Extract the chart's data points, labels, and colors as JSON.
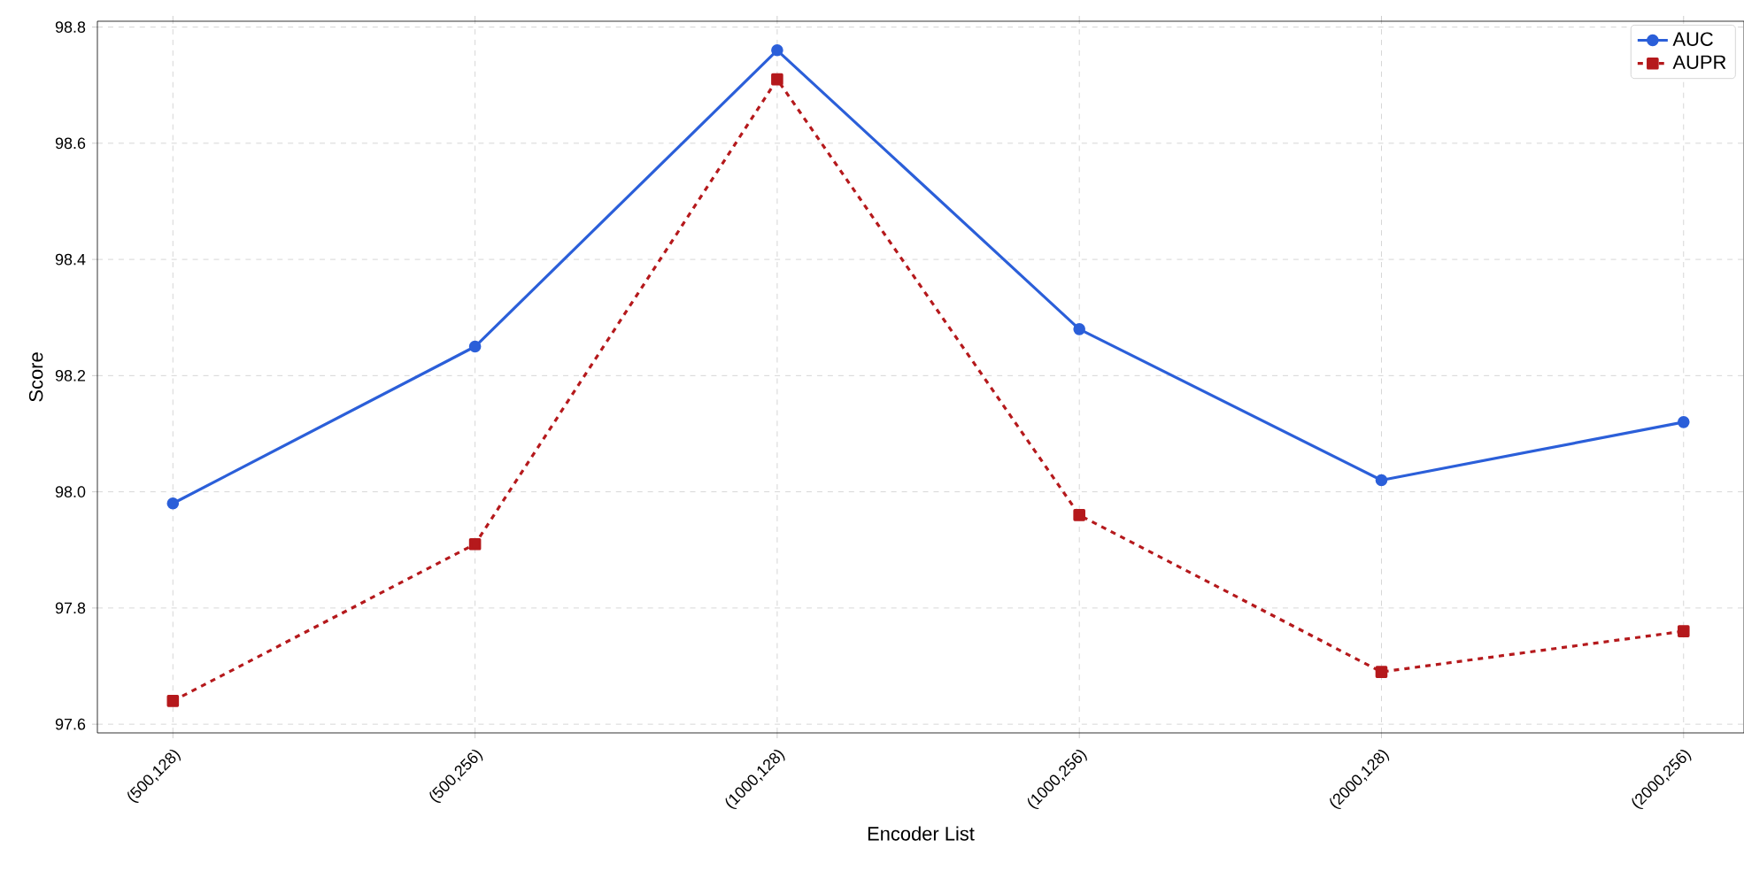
{
  "chart_data": {
    "type": "line",
    "xlabel": "Encoder List",
    "ylabel": "Score",
    "categories": [
      "(500,128)",
      "(500,256)",
      "(1000,128)",
      "(1000,256)",
      "(2000,128)",
      "(2000,256)"
    ],
    "series": [
      {
        "name": "AUC",
        "color": "#2b5fd9",
        "marker": "circle",
        "line_style": "solid",
        "values": [
          97.98,
          98.25,
          98.76,
          98.28,
          98.02,
          98.12
        ]
      },
      {
        "name": "AUPR",
        "color": "#b5191c",
        "marker": "square",
        "line_style": "dashed",
        "values": [
          97.64,
          97.91,
          98.71,
          97.96,
          97.69,
          97.76
        ]
      }
    ],
    "ylim": [
      97.585,
      98.81
    ],
    "yticks": [
      97.6,
      97.8,
      {
        "value": 98,
        "label": "98.0"
      },
      98.2,
      98.4,
      98.6,
      98.8
    ],
    "grid": true,
    "legend": "top right"
  }
}
